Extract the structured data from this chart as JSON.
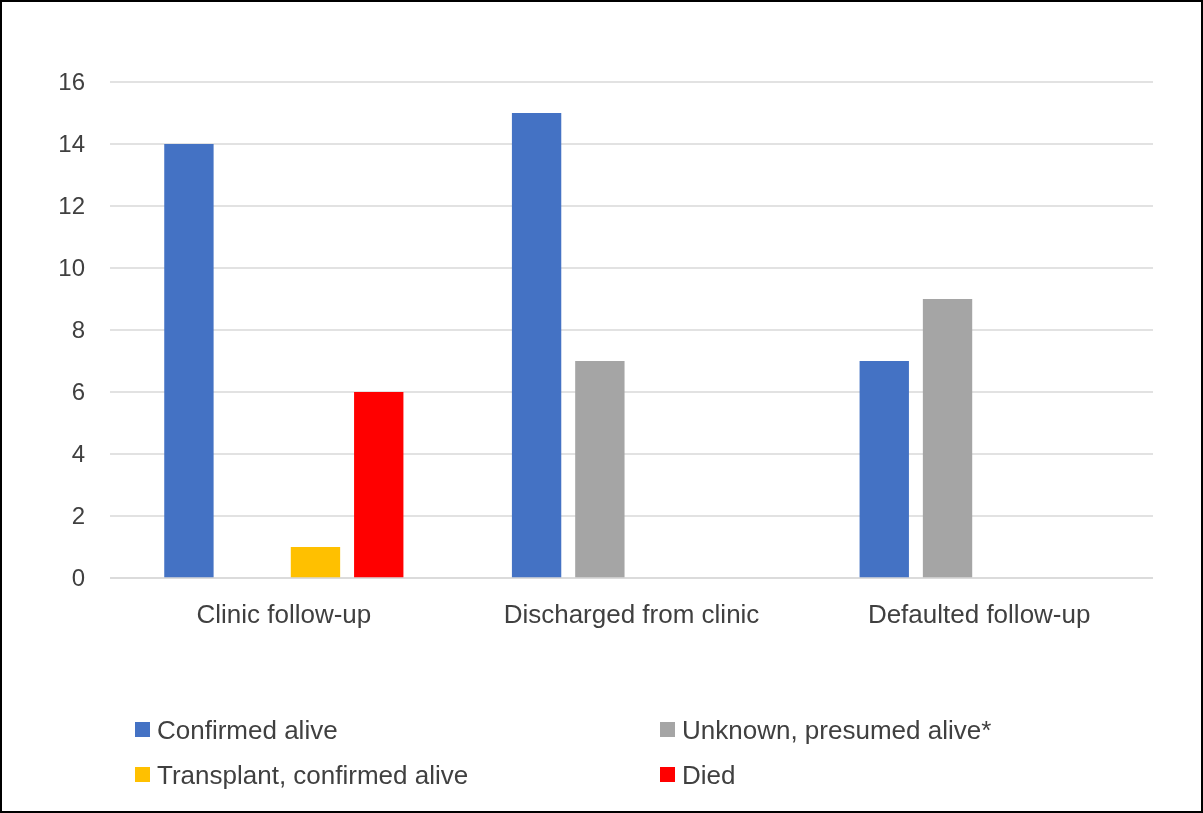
{
  "chart_data": {
    "type": "bar",
    "categories": [
      "Clinic follow-up",
      "Discharged from clinic",
      "Defaulted follow-up"
    ],
    "series": [
      {
        "name": "Confirmed alive",
        "color": "#4472c4",
        "values": [
          14,
          15,
          7
        ]
      },
      {
        "name": "Unknown, presumed alive*",
        "color": "#a5a5a5",
        "values": [
          0,
          7,
          9
        ]
      },
      {
        "name": "Transplant, confirmed alive",
        "color": "#ffc000",
        "values": [
          1,
          0,
          0
        ]
      },
      {
        "name": "Died",
        "color": "#ff0000",
        "values": [
          6,
          0,
          0
        ]
      }
    ],
    "ylim": [
      0,
      16
    ],
    "yticks": [
      0,
      2,
      4,
      6,
      8,
      10,
      12,
      14,
      16
    ],
    "grid": "y",
    "legend": "bottom"
  }
}
